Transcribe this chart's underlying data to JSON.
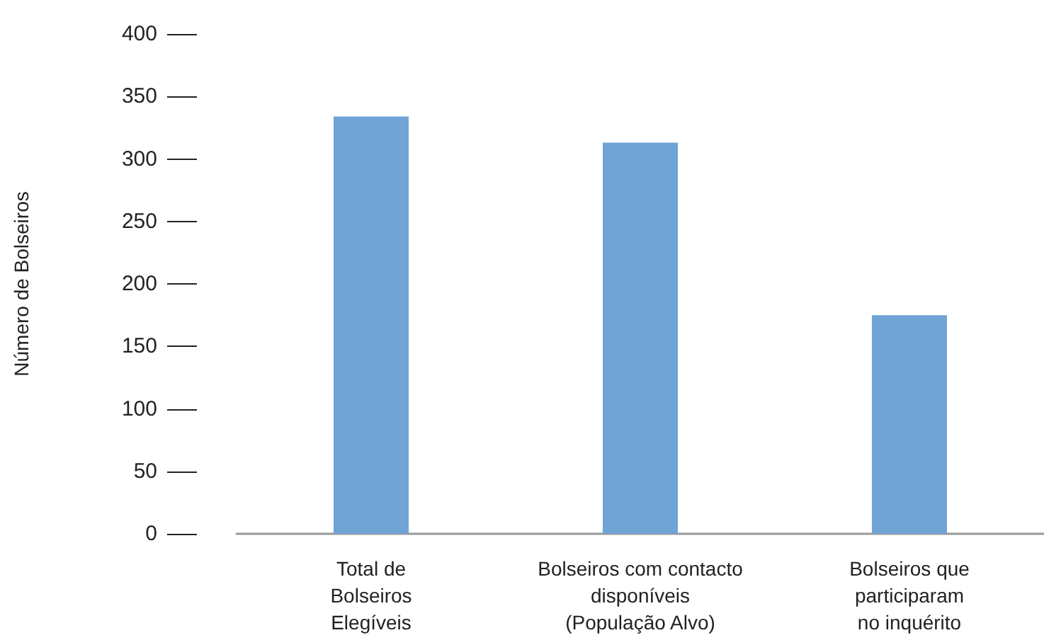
{
  "chart_data": {
    "type": "bar",
    "ylabel": "Número de Bolseiros",
    "categories": [
      "Total de\nBolseiros\nElegíveis",
      "Bolseiros com contacto\ndisponíveis\n(População Alvo)",
      "Bolseiros que\nparticiparam\nno inquérito"
    ],
    "values": [
      334,
      313,
      175
    ],
    "color": "#70a3d6",
    "ylim": [
      0,
      400
    ],
    "yticks": [
      0,
      50,
      100,
      150,
      200,
      250,
      300,
      350,
      400
    ],
    "grid": false
  }
}
